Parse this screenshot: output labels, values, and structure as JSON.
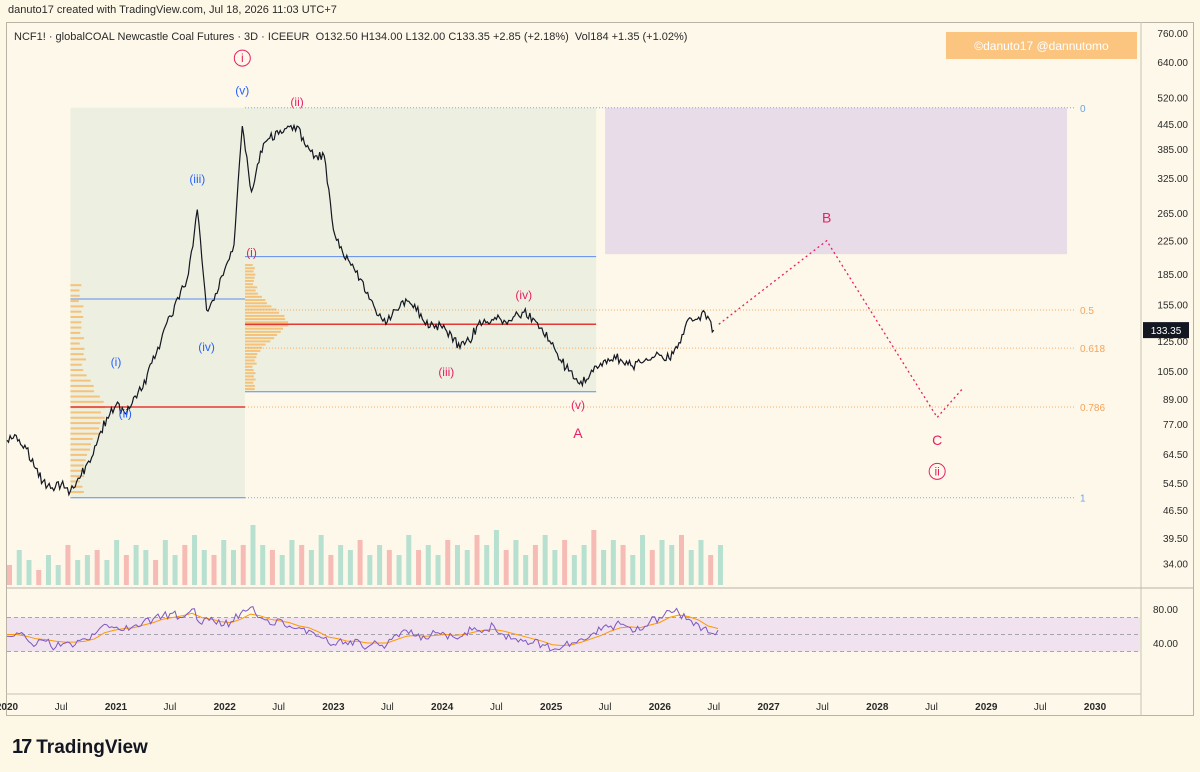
{
  "header": {
    "credit": "danuto17 created with TradingView.com, Jul 18, 2026 11:03 UTC+7"
  },
  "legend": {
    "symbol": "NCF1! · globalCOAL Newcastle Coal Futures · 3D · ICEEUR",
    "ohlc": "O132.50  H134.00  L132.00  C133.35  +2.85 (+2.18%)",
    "volume": "Vol184  +1.35 (+1.02%)"
  },
  "watermark": "©danuto17   @dannutomo",
  "branding": {
    "name": "TradingView",
    "mark": "17"
  },
  "colors": {
    "background": "#fdf7e6",
    "blue_wave": "#2962ff",
    "pink_wave": "#e91e63",
    "fib": "#f5a45b",
    "price_badge": "#131722"
  },
  "chart_data": {
    "type": "line",
    "title": "NCF1! · globalCOAL Newcastle Coal Futures · 3D · ICEEUR",
    "xlabel": "",
    "ylabel": "",
    "y_scale": "log",
    "ylim": [
      30,
      800
    ],
    "xlim": [
      "2020-01-01",
      "2030-06-01"
    ],
    "last_price": "133.35",
    "x_ticks": [
      {
        "label": "2020",
        "date": "2020-01-01",
        "bold": true
      },
      {
        "label": "Jul",
        "date": "2020-07-01",
        "bold": false
      },
      {
        "label": "2021",
        "date": "2021-01-01",
        "bold": true
      },
      {
        "label": "Jul",
        "date": "2021-07-01",
        "bold": false
      },
      {
        "label": "2022",
        "date": "2022-01-01",
        "bold": true
      },
      {
        "label": "Jul",
        "date": "2022-07-01",
        "bold": false
      },
      {
        "label": "2023",
        "date": "2023-01-01",
        "bold": true
      },
      {
        "label": "Jul",
        "date": "2023-07-01",
        "bold": false
      },
      {
        "label": "2024",
        "date": "2024-01-01",
        "bold": true
      },
      {
        "label": "Jul",
        "date": "2024-07-01",
        "bold": false
      },
      {
        "label": "2025",
        "date": "2025-01-01",
        "bold": true
      },
      {
        "label": "Jul",
        "date": "2025-07-01",
        "bold": false
      },
      {
        "label": "2026",
        "date": "2026-01-01",
        "bold": true
      },
      {
        "label": "Jul",
        "date": "2026-07-01",
        "bold": false
      },
      {
        "label": "2027",
        "date": "2027-01-01",
        "bold": true
      },
      {
        "label": "Jul",
        "date": "2027-07-01",
        "bold": false
      },
      {
        "label": "2028",
        "date": "2028-01-01",
        "bold": true
      },
      {
        "label": "Jul",
        "date": "2028-07-01",
        "bold": false
      },
      {
        "label": "2029",
        "date": "2029-01-01",
        "bold": true
      },
      {
        "label": "Jul",
        "date": "2029-07-01",
        "bold": false
      },
      {
        "label": "2030",
        "date": "2030-01-01",
        "bold": true
      }
    ],
    "y_ticks": [
      {
        "label": "760.00",
        "value": 760
      },
      {
        "label": "640.00",
        "value": 640
      },
      {
        "label": "520.00",
        "value": 520
      },
      {
        "label": "445.00",
        "value": 445
      },
      {
        "label": "385.00",
        "value": 385
      },
      {
        "label": "325.00",
        "value": 325
      },
      {
        "label": "265.00",
        "value": 265
      },
      {
        "label": "225.00",
        "value": 225
      },
      {
        "label": "185.00",
        "value": 185
      },
      {
        "label": "155.00",
        "value": 155
      },
      {
        "label": "125.00",
        "value": 125
      },
      {
        "label": "105.00",
        "value": 105
      },
      {
        "label": "89.00",
        "value": 89
      },
      {
        "label": "77.00",
        "value": 77
      },
      {
        "label": "64.50",
        "value": 64.5
      },
      {
        "label": "54.50",
        "value": 54.5
      },
      {
        "label": "46.50",
        "value": 46.5
      },
      {
        "label": "39.50",
        "value": 39.5
      },
      {
        "label": "34.00",
        "value": 34
      }
    ],
    "series": [
      {
        "name": "NCF1!",
        "points": [
          [
            "2020-01-01",
            70
          ],
          [
            "2020-02-01",
            72
          ],
          [
            "2020-03-01",
            68
          ],
          [
            "2020-04-01",
            60
          ],
          [
            "2020-05-01",
            55
          ],
          [
            "2020-06-01",
            53
          ],
          [
            "2020-07-01",
            54
          ],
          [
            "2020-08-01",
            52
          ],
          [
            "2020-09-01",
            56
          ],
          [
            "2020-10-01",
            62
          ],
          [
            "2020-11-01",
            70
          ],
          [
            "2020-12-01",
            80
          ],
          [
            "2021-01-01",
            86
          ],
          [
            "2021-02-01",
            82
          ],
          [
            "2021-03-01",
            90
          ],
          [
            "2021-04-01",
            95
          ],
          [
            "2021-05-01",
            110
          ],
          [
            "2021-06-01",
            125
          ],
          [
            "2021-07-01",
            145
          ],
          [
            "2021-08-01",
            160
          ],
          [
            "2021-09-01",
            185
          ],
          [
            "2021-10-01",
            270
          ],
          [
            "2021-11-01",
            150
          ],
          [
            "2021-12-01",
            165
          ],
          [
            "2022-01-01",
            190
          ],
          [
            "2022-02-01",
            220
          ],
          [
            "2022-03-01",
            440
          ],
          [
            "2022-04-01",
            300
          ],
          [
            "2022-05-01",
            380
          ],
          [
            "2022-06-01",
            410
          ],
          [
            "2022-07-01",
            420
          ],
          [
            "2022-08-01",
            440
          ],
          [
            "2022-09-01",
            440
          ],
          [
            "2022-10-01",
            390
          ],
          [
            "2022-11-01",
            370
          ],
          [
            "2022-12-01",
            370
          ],
          [
            "2023-01-01",
            240
          ],
          [
            "2023-02-01",
            210
          ],
          [
            "2023-03-01",
            195
          ],
          [
            "2023-04-01",
            180
          ],
          [
            "2023-05-01",
            160
          ],
          [
            "2023-06-01",
            145
          ],
          [
            "2023-07-01",
            140
          ],
          [
            "2023-08-01",
            150
          ],
          [
            "2023-09-01",
            160
          ],
          [
            "2023-10-01",
            155
          ],
          [
            "2023-11-01",
            140
          ],
          [
            "2023-12-01",
            138
          ],
          [
            "2024-01-01",
            135
          ],
          [
            "2024-02-01",
            130
          ],
          [
            "2024-03-01",
            120
          ],
          [
            "2024-04-01",
            125
          ],
          [
            "2024-05-01",
            138
          ],
          [
            "2024-06-01",
            140
          ],
          [
            "2024-07-01",
            142
          ],
          [
            "2024-08-01",
            140
          ],
          [
            "2024-09-01",
            145
          ],
          [
            "2024-10-01",
            148
          ],
          [
            "2024-11-01",
            143
          ],
          [
            "2024-12-01",
            135
          ],
          [
            "2025-01-01",
            123
          ],
          [
            "2025-02-01",
            112
          ],
          [
            "2025-03-01",
            105
          ],
          [
            "2025-04-01",
            98
          ],
          [
            "2025-05-01",
            100
          ],
          [
            "2025-06-01",
            108
          ],
          [
            "2025-07-01",
            112
          ],
          [
            "2025-08-01",
            115
          ],
          [
            "2025-09-01",
            110
          ],
          [
            "2025-10-01",
            108
          ],
          [
            "2025-11-01",
            110
          ],
          [
            "2025-12-01",
            112
          ],
          [
            "2026-01-01",
            115
          ],
          [
            "2026-02-01",
            113
          ],
          [
            "2026-03-01",
            120
          ],
          [
            "2026-04-01",
            140
          ],
          [
            "2026-05-01",
            142
          ],
          [
            "2026-06-01",
            148
          ],
          [
            "2026-07-01",
            133.35
          ]
        ]
      },
      {
        "name": "projection",
        "points": [
          [
            "2026-07-18",
            138
          ],
          [
            "2027-07-15",
            225
          ],
          [
            "2028-07-20",
            80
          ],
          [
            "2028-10-15",
            95
          ]
        ]
      }
    ],
    "fib_levels": [
      {
        "label": "0",
        "value": 490
      },
      {
        "label": "0.5",
        "value": 150
      },
      {
        "label": "0.618",
        "value": 120
      },
      {
        "label": "0.786",
        "value": 85
      },
      {
        "label": "1",
        "value": 50
      }
    ],
    "annotations": [
      {
        "text": "i",
        "circled": true,
        "color": "#e91e63",
        "date": "2022-03-01",
        "value": 640
      },
      {
        "text": "(v)",
        "color": "#2962ff",
        "date": "2022-03-01",
        "value": 530
      },
      {
        "text": "(ii)",
        "color": "#e91e63",
        "date": "2022-09-01",
        "value": 495
      },
      {
        "text": "(iii)",
        "color": "#2962ff",
        "date": "2021-10-01",
        "value": 315
      },
      {
        "text": "(i)",
        "color": "#e91e63",
        "date": "2022-04-01",
        "value": 205
      },
      {
        "text": "(iv)",
        "color": "#2962ff",
        "date": "2021-11-01",
        "value": 118
      },
      {
        "text": "(i)",
        "color": "#2962ff",
        "date": "2021-01-01",
        "value": 108
      },
      {
        "text": "(ii)",
        "color": "#2962ff",
        "date": "2021-02-01",
        "value": 80
      },
      {
        "text": "(iv)",
        "color": "#e91e63",
        "date": "2024-10-01",
        "value": 160
      },
      {
        "text": "(iii)",
        "color": "#e91e63",
        "date": "2024-01-15",
        "value": 102
      },
      {
        "text": "(v)",
        "color": "#e91e63",
        "date": "2025-04-01",
        "value": 84
      },
      {
        "text": "A",
        "color": "#e91e63",
        "date": "2025-04-01",
        "value": 71
      },
      {
        "text": "B",
        "color": "#e91e63",
        "date": "2027-07-15",
        "value": 250
      },
      {
        "text": "C",
        "color": "#e91e63",
        "date": "2028-07-20",
        "value": 68
      },
      {
        "text": "ii",
        "circled": true,
        "color": "#e91e63",
        "date": "2028-07-20",
        "value": 57
      }
    ],
    "rsi": {
      "ylim": [
        20,
        100
      ],
      "ticks": [
        {
          "label": "80.00",
          "value": 80
        },
        {
          "label": "40.00",
          "value": 40
        }
      ],
      "bands": [
        70,
        50,
        30
      ],
      "values": [
        48,
        52,
        45,
        38,
        42,
        35,
        40,
        38,
        45,
        50,
        62,
        58,
        55,
        60,
        65,
        68,
        72,
        75,
        70,
        80,
        62,
        70,
        60,
        65,
        75,
        82,
        70,
        62,
        68,
        60,
        58,
        55,
        48,
        40,
        42,
        38,
        44,
        35,
        40,
        38,
        50,
        55,
        48,
        45,
        52,
        50,
        46,
        52,
        58,
        55,
        60,
        50,
        45,
        42,
        40,
        38,
        32,
        35,
        40,
        45,
        50,
        55,
        60,
        62,
        58,
        55,
        65,
        70,
        78,
        75,
        68,
        62,
        52,
        55
      ],
      "signal": [
        50,
        50,
        48,
        45,
        44,
        42,
        41,
        41,
        42,
        45,
        52,
        55,
        57,
        58,
        61,
        64,
        68,
        70,
        72,
        75,
        70,
        68,
        65,
        64,
        68,
        74,
        72,
        68,
        66,
        64,
        60,
        58,
        53,
        47,
        45,
        42,
        42,
        40,
        40,
        40,
        44,
        48,
        49,
        48,
        49,
        50,
        49,
        50,
        53,
        55,
        56,
        54,
        51,
        48,
        45,
        42,
        38,
        37,
        38,
        41,
        45,
        49,
        54,
        58,
        59,
        58,
        61,
        64,
        70,
        73,
        71,
        67,
        60,
        57
      ],
      "colors": {
        "rsi": "#7e57c2",
        "signal": "#ff9800"
      }
    },
    "volume_values": [
      4,
      7,
      5,
      3,
      6,
      4,
      8,
      5,
      6,
      7,
      5,
      9,
      6,
      8,
      7,
      5,
      9,
      6,
      8,
      10,
      7,
      6,
      9,
      7,
      8,
      12,
      8,
      7,
      6,
      9,
      8,
      7,
      10,
      6,
      8,
      7,
      9,
      6,
      8,
      7,
      6,
      10,
      7,
      8,
      6,
      9,
      8,
      7,
      10,
      8,
      11,
      7,
      9,
      6,
      8,
      10,
      7,
      9,
      6,
      8,
      11,
      7,
      9,
      8,
      6,
      10,
      7,
      9,
      8,
      10,
      7,
      9,
      6,
      8
    ]
  }
}
